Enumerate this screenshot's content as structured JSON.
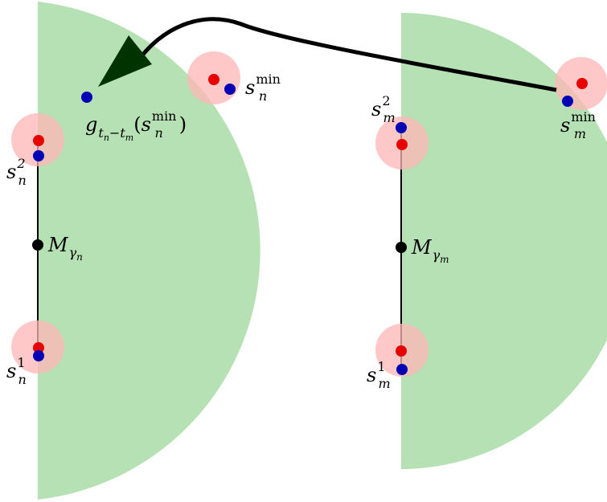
{
  "diagram": {
    "colors": {
      "region_fill": "#b6e1b4",
      "ball_fill": "#ffb6b6",
      "point_red": "#e60000",
      "point_blue": "#0000b4",
      "center_black": "#000000",
      "arrow_head": "#003300",
      "line": "#000000"
    },
    "left": {
      "s1": {
        "base": "s",
        "sub": "n",
        "sup": "1"
      },
      "s2": {
        "base": "s",
        "sub": "n",
        "sup": "2"
      },
      "smin": {
        "base": "s",
        "sub": "n",
        "sup": "min"
      },
      "center": {
        "base": "M",
        "sub": "γ",
        "subsub": "n"
      },
      "mapped": {
        "g": "g",
        "sub_a": "t",
        "sub_a_sub": "n",
        "sub_minus": "−",
        "sub_b": "t",
        "sub_b_sub": "m",
        "open": "(",
        "arg": "s",
        "arg_sub": "n",
        "arg_sup": "min",
        "close": ")"
      }
    },
    "right": {
      "s1": {
        "base": "s",
        "sub": "m",
        "sup": "1"
      },
      "s2": {
        "base": "s",
        "sub": "m",
        "sup": "2"
      },
      "smin": {
        "base": "s",
        "sub": "m",
        "sup": "min"
      },
      "center": {
        "base": "M",
        "sub": "γ",
        "subsub": "m"
      }
    }
  }
}
